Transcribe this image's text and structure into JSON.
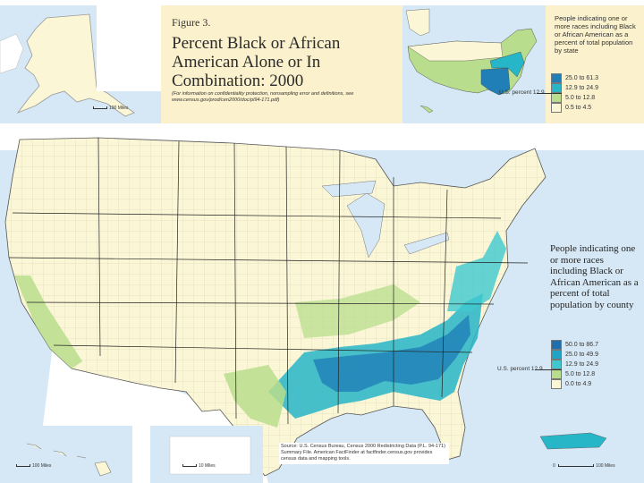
{
  "figure": {
    "label": "Figure 3.",
    "title": "Percent Black or African American Alone or In Combination:  2000",
    "note": "(For information on confidentiality protection, nonsampling error and definitions, see www.census.gov/prod/cen2000/doc/pl94-171.pdf)"
  },
  "state_legend": {
    "title": "People indicating one or more races including Black or African American as a percent of total population by state",
    "us_percent_label": "U.S. percent 12.9",
    "classes": [
      {
        "label": "25.0 to 61.3",
        "color": "#1f7fb6"
      },
      {
        "label": "12.9 to 24.9",
        "color": "#27b5c8"
      },
      {
        "label": "5.0 to 12.8",
        "color": "#b8dd8c"
      },
      {
        "label": "0.5 to 4.5",
        "color": "#faf6d6"
      }
    ]
  },
  "county_legend": {
    "title": "People indicating one or more races including Black or African American as a percent of total population by county",
    "us_percent_label": "U.S. percent 12.9",
    "classes": [
      {
        "label": "50.0 to 86.7",
        "color": "#1f6fae"
      },
      {
        "label": "25.0 to 49.9",
        "color": "#1fa4c6"
      },
      {
        "label": "12.9 to 24.9",
        "color": "#3fc9cf"
      },
      {
        "label": "5.0 to 12.8",
        "color": "#b8dd8c"
      },
      {
        "label": "0.0 to 4.9",
        "color": "#faf6d6"
      }
    ]
  },
  "scales": {
    "alaska": "100 Miles",
    "hawaii": "100 Miles",
    "dc": "10 Miles",
    "puerto_rico_zero": "0",
    "puerto_rico": "100 Miles"
  },
  "source": "Source: U.S. Census Bureau, Census 2000 Redistricting Data (P.L. 94-171) Summary File. American FactFinder at factfinder.census.gov provides census data and mapping tools.",
  "colors": {
    "water": "#d6e8f5",
    "land_neighbor": "#ffffff",
    "panel": "#fbf1cc",
    "county_border": "#c9c2a4",
    "state_border": "#222222"
  }
}
